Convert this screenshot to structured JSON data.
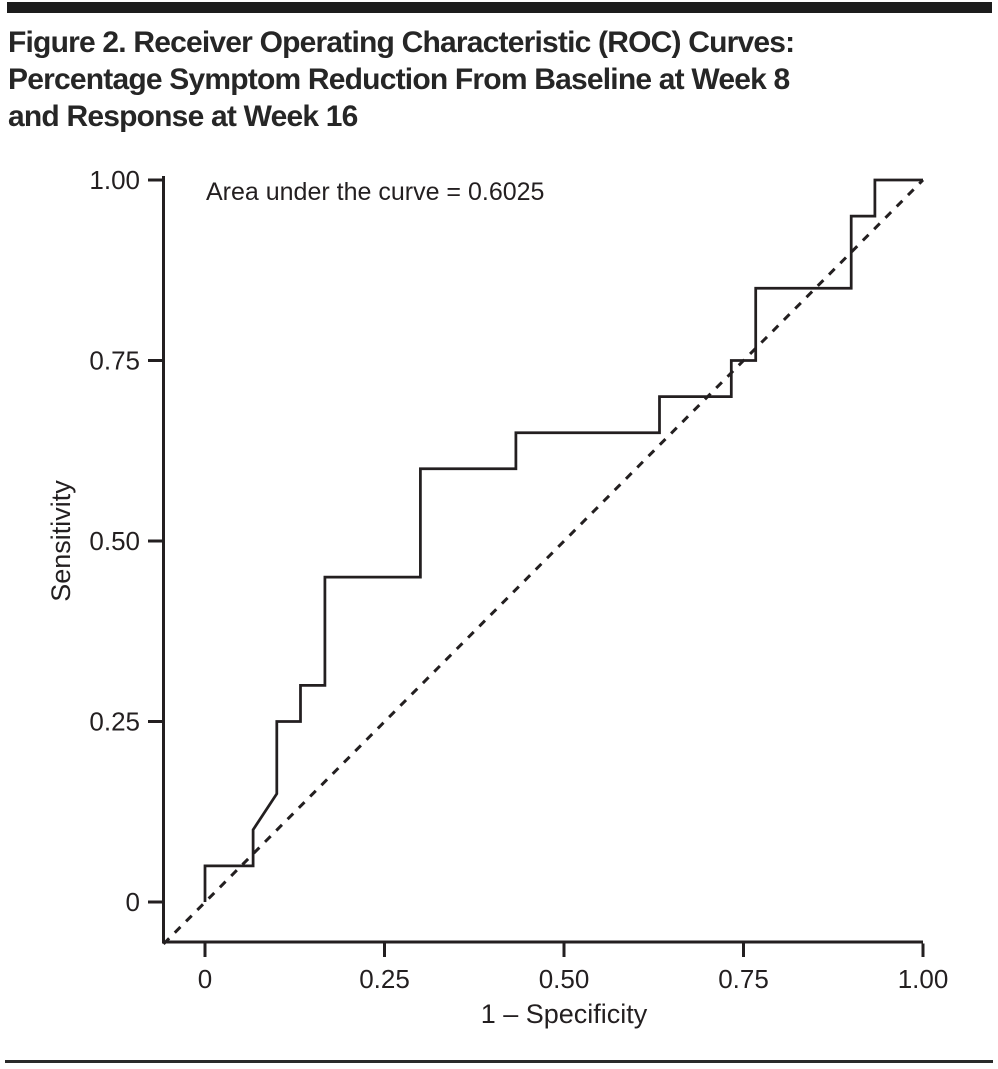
{
  "figure": {
    "title_line1": "Figure 2. Receiver Operating Characteristic (ROC) Curves:",
    "title_line2": "Percentage Symptom Reduction From Baseline at Week 8",
    "title_line3": "and Response at Week 16"
  },
  "chart_data": {
    "type": "line",
    "title": "Figure 2. Receiver Operating Characteristic (ROC) Curves: Percentage Symptom Reduction From Baseline at Week 8 and Response at Week 16",
    "xlabel": "1 – Specificity",
    "ylabel": "Sensitivity",
    "annotation": "Area under the curve = 0.6025",
    "auc": 0.6025,
    "xlim": [
      0,
      1
    ],
    "ylim": [
      0,
      1
    ],
    "grid": false,
    "legend_position": "none",
    "x_tick_values": [
      0,
      0.25,
      0.5,
      0.75,
      1
    ],
    "x_tick_labels": [
      "0",
      "0.25",
      "0.50",
      "0.75",
      "1.00"
    ],
    "y_tick_values": [
      0,
      0.25,
      0.5,
      0.75,
      1
    ],
    "y_tick_labels": [
      "0",
      "0.25",
      "0.50",
      "0.75",
      "1.00"
    ],
    "series": [
      {
        "name": "ROC curve",
        "style": "solid",
        "points": [
          [
            0,
            0
          ],
          [
            0,
            0.05
          ],
          [
            0.067,
            0.05
          ],
          [
            0.067,
            0.1
          ],
          [
            0.1,
            0.15
          ],
          [
            0.1,
            0.25
          ],
          [
            0.133,
            0.25
          ],
          [
            0.133,
            0.3
          ],
          [
            0.167,
            0.3
          ],
          [
            0.167,
            0.45
          ],
          [
            0.3,
            0.45
          ],
          [
            0.3,
            0.6
          ],
          [
            0.433,
            0.6
          ],
          [
            0.433,
            0.65
          ],
          [
            0.633,
            0.65
          ],
          [
            0.633,
            0.7
          ],
          [
            0.733,
            0.7
          ],
          [
            0.733,
            0.75
          ],
          [
            0.767,
            0.75
          ],
          [
            0.767,
            0.85
          ],
          [
            0.9,
            0.85
          ],
          [
            0.9,
            0.95
          ],
          [
            0.933,
            0.95
          ],
          [
            0.933,
            1.0
          ],
          [
            1.0,
            1.0
          ]
        ]
      },
      {
        "name": "Chance reference line",
        "style": "dashed",
        "points": [
          [
            0,
            0
          ],
          [
            1,
            1
          ]
        ]
      }
    ]
  },
  "colors": {
    "ink": "#231f20",
    "title_ink": "#262626",
    "background": "#ffffff"
  }
}
